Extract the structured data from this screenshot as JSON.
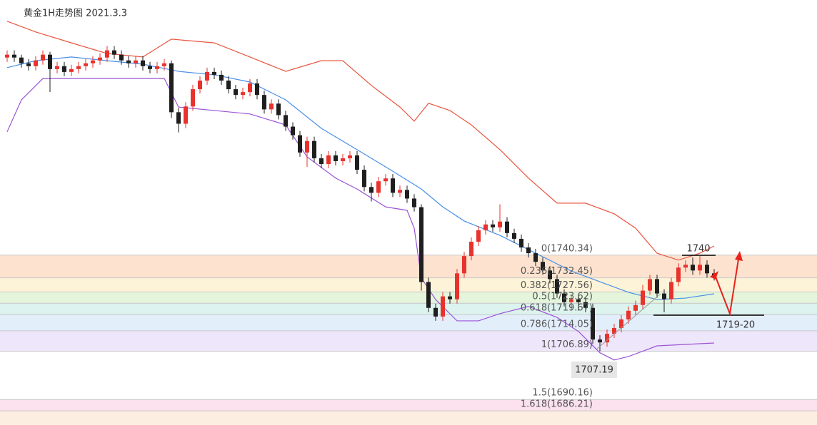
{
  "chart_data": {
    "type": "candlestick",
    "title": "黄金1H走势图 2021.3.3",
    "up_color": "#e8322e",
    "down_color": "#1e1e1e",
    "ylim": [
      1681.3,
      1829
    ],
    "open": [
      1809,
      1810,
      1809,
      1807,
      1806,
      1808,
      1810,
      1805,
      1806,
      1804,
      1805,
      1806,
      1807,
      1808,
      1809,
      1811.5,
      1810,
      1808,
      1807,
      1808,
      1806,
      1805,
      1806,
      1807,
      1790,
      1786,
      1792,
      1798,
      1801,
      1804,
      1803,
      1801,
      1798,
      1796,
      1797,
      1800,
      1796,
      1791,
      1793,
      1789,
      1785,
      1782,
      1776,
      1780,
      1774,
      1772,
      1775,
      1773,
      1774,
      1775,
      1770,
      1764,
      1762,
      1766,
      1767,
      1762,
      1763,
      1760,
      1757,
      1731,
      1722,
      1719,
      1726,
      1725,
      1734,
      1740,
      1745,
      1749,
      1751,
      1750,
      1752,
      1748,
      1746,
      1743,
      1741,
      1738,
      1735,
      1732,
      1727,
      1724,
      1725,
      1724,
      1722,
      1711,
      1710,
      1713,
      1715,
      1718,
      1721,
      1723,
      1728,
      1732,
      1727,
      1725,
      1731,
      1736,
      1737,
      1735,
      1737,
      1734
    ],
    "high": [
      1811.5,
      1811.5,
      1810,
      1808.5,
      1809.5,
      1811.5,
      1811,
      1807.5,
      1807.5,
      1806.5,
      1807.5,
      1808.5,
      1809.5,
      1810.5,
      1813,
      1813,
      1811.5,
      1809.5,
      1809.5,
      1809.5,
      1807.5,
      1807.5,
      1808.5,
      1808,
      1791.5,
      1793.5,
      1799.5,
      1802.5,
      1805.5,
      1805.5,
      1804.5,
      1802.5,
      1799.5,
      1798.5,
      1801.5,
      1801.5,
      1797.5,
      1794.5,
      1794.5,
      1790.5,
      1786.5,
      1783.5,
      1781.5,
      1781.5,
      1775.5,
      1776.5,
      1776.5,
      1775.5,
      1776.5,
      1776.5,
      1771.5,
      1765.5,
      1767.5,
      1768.5,
      1768.5,
      1764.5,
      1764.5,
      1761.5,
      1758,
      1732.5,
      1723.5,
      1727.5,
      1727.5,
      1735.5,
      1741.5,
      1746.5,
      1750.5,
      1752.5,
      1752.5,
      1758,
      1753.5,
      1749.5,
      1747.5,
      1744.5,
      1742.5,
      1739.5,
      1736.5,
      1733.5,
      1728.5,
      1726.5,
      1726.5,
      1725.5,
      1723.5,
      1712.5,
      1714.5,
      1716.5,
      1719.5,
      1722.5,
      1724.5,
      1730,
      1733.5,
      1733.5,
      1728.5,
      1732.5,
      1737.5,
      1738.5,
      1739.5,
      1740,
      1738.5,
      1735.5
    ],
    "low": [
      1807.5,
      1807.5,
      1805.5,
      1804.5,
      1804.5,
      1806.5,
      1797,
      1803.5,
      1802.5,
      1802.5,
      1803.5,
      1804.5,
      1805.5,
      1806.5,
      1807.5,
      1808.5,
      1806.5,
      1805.5,
      1805.5,
      1804.5,
      1803.5,
      1803.5,
      1804.5,
      1788,
      1783,
      1784.5,
      1790.5,
      1796.5,
      1799.5,
      1801.5,
      1799.5,
      1796.5,
      1794.5,
      1794.5,
      1795.5,
      1794.5,
      1789.5,
      1789.5,
      1787.5,
      1783.5,
      1780.5,
      1774.5,
      1771,
      1772.5,
      1770.5,
      1770.5,
      1771.5,
      1771.5,
      1772.5,
      1768.5,
      1762.5,
      1759,
      1760.5,
      1764.5,
      1760.5,
      1760.5,
      1758.5,
      1755.5,
      1728,
      1720.5,
      1717.5,
      1717.5,
      1723.5,
      1723.5,
      1732.5,
      1738.5,
      1743.5,
      1747.5,
      1748.5,
      1748.5,
      1746.5,
      1744.5,
      1741.5,
      1739.5,
      1736.5,
      1733.5,
      1730.5,
      1725.5,
      1722.5,
      1721,
      1721,
      1720.5,
      1709.5,
      1706.9,
      1708.5,
      1711.5,
      1713.5,
      1716.5,
      1719.5,
      1721.5,
      1726.5,
      1725.5,
      1720.5,
      1723.5,
      1729.5,
      1734.5,
      1733.5,
      1733.5,
      1732.5,
      1731.5
    ],
    "close": [
      1810,
      1809,
      1807,
      1806,
      1808,
      1810,
      1805,
      1806,
      1804,
      1805,
      1806,
      1807,
      1808,
      1809,
      1811.5,
      1810,
      1808,
      1807,
      1808,
      1806,
      1805,
      1806,
      1807,
      1790,
      1786,
      1792,
      1798,
      1801,
      1804,
      1803,
      1801,
      1798,
      1796,
      1797,
      1800,
      1796,
      1791,
      1793,
      1789,
      1785,
      1782,
      1776,
      1780,
      1774,
      1772,
      1775,
      1773,
      1774,
      1775,
      1770,
      1764,
      1762,
      1766,
      1767,
      1762,
      1763,
      1760,
      1757,
      1731,
      1722,
      1719,
      1726,
      1725,
      1734,
      1740,
      1745,
      1749,
      1751,
      1750,
      1752,
      1748,
      1746,
      1743,
      1741,
      1738,
      1735,
      1732,
      1727,
      1724,
      1725,
      1724,
      1722,
      1711,
      1710,
      1713,
      1715,
      1718,
      1721,
      1723,
      1728,
      1732,
      1727,
      1725,
      1731,
      1736,
      1737,
      1735,
      1737,
      1734,
      1733
    ],
    "lines": [
      {
        "color": "#e8553f",
        "x": [
          0,
          4,
          9,
          14,
          19,
          23,
          29,
          34,
          39,
          44,
          47,
          51,
          55,
          57,
          59,
          62,
          65,
          69,
          73,
          77,
          81,
          85,
          88,
          91,
          94,
          97,
          99
        ],
        "values": [
          1821.6,
          1817.9,
          1814.1,
          1810.4,
          1809.2,
          1815.4,
          1814.1,
          1809.2,
          1804.2,
          1807.9,
          1807.9,
          1799.3,
          1791.8,
          1786.9,
          1793.1,
          1790.6,
          1785.6,
          1777.0,
          1767.1,
          1758.4,
          1758.4,
          1754.7,
          1749.7,
          1741.0,
          1738.6,
          1741.0,
          1743.5
        ]
      },
      {
        "color": "#4a8fe7",
        "x": [
          0,
          4,
          9,
          14,
          19,
          24,
          29,
          34,
          39,
          44,
          49,
          54,
          58,
          61,
          64,
          69,
          74,
          79,
          83,
          87,
          91,
          95,
          99
        ],
        "values": [
          1805.5,
          1807.9,
          1809.2,
          1807.9,
          1806.7,
          1804.2,
          1803.0,
          1800.5,
          1794.3,
          1784.4,
          1777.0,
          1769.5,
          1763.3,
          1757.1,
          1752.2,
          1747.2,
          1741.0,
          1734.8,
          1731.1,
          1727.4,
          1724.9,
          1725.4,
          1726.9
        ]
      },
      {
        "color": "#9b55d6",
        "x": [
          0,
          2,
          5,
          9,
          14,
          19,
          22,
          24,
          29,
          34,
          39,
          42,
          46,
          49,
          53,
          56,
          57,
          58,
          60,
          63,
          66,
          69,
          73,
          77,
          80,
          83,
          85,
          87,
          91,
          95,
          99
        ],
        "values": [
          1783.2,
          1794.3,
          1801.7,
          1801.7,
          1801.7,
          1801.7,
          1801.7,
          1791.8,
          1790.6,
          1789.4,
          1785.6,
          1774.5,
          1767.1,
          1763.3,
          1757.1,
          1755.9,
          1749.7,
          1732.4,
          1724.9,
          1717.5,
          1717.5,
          1720.0,
          1722.5,
          1718.7,
          1713.8,
          1706.4,
          1703.9,
          1705.1,
          1708.8,
          1709.3,
          1709.8
        ]
      }
    ],
    "fib_levels": [
      {
        "value": 1740.34,
        "label": "0(1740.34)",
        "color": "#fde3cf"
      },
      {
        "value": 1732.45,
        "label": "0.236(1732.45)",
        "color": "#fdf3d8"
      },
      {
        "value": 1727.56,
        "label": "0.382(1727.56)",
        "color": "#e4f5dc"
      },
      {
        "value": 1723.62,
        "label": "0.5(1723.62)",
        "color": "#dcf3ee"
      },
      {
        "value": 1719.67,
        "label": "0.618(1719.67)",
        "color": "#e3eefb"
      },
      {
        "value": 1714.05,
        "label": "0.786(1714.05)",
        "color": "#eee6fa"
      },
      {
        "value": 1706.89,
        "label": "1(1706.89)",
        "color": "#ffffff"
      },
      {
        "value": 1690.16,
        "label": "1.5(1690.16)",
        "color": "#fbe0ee"
      },
      {
        "value": 1686.21,
        "label": "1.618(1686.21)",
        "color": "#fdeee2"
      }
    ],
    "annotations": [
      "1740",
      "1719-20",
      "1707.19"
    ]
  }
}
